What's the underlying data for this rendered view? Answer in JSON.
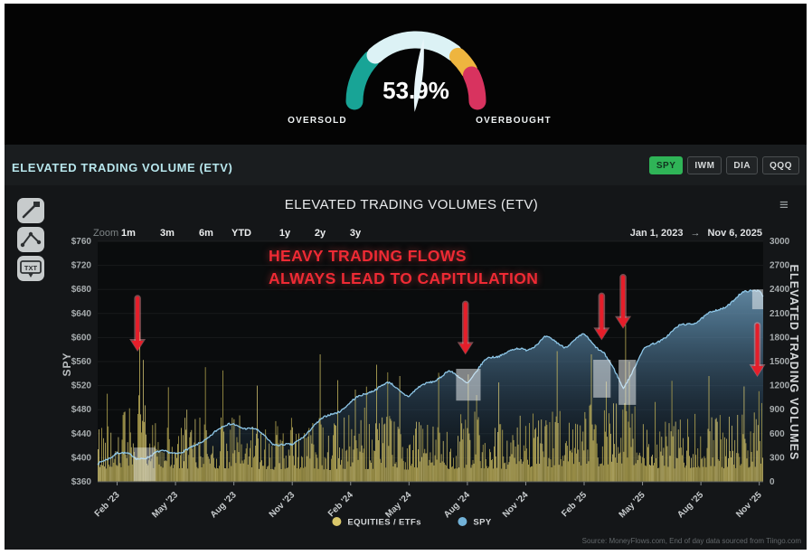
{
  "gauge": {
    "value_label": "53.9%",
    "value_pct": 53.9,
    "left_label": "OVERSOLD",
    "right_label": "OVERBOUGHT",
    "needle_color": "#e9f6fa",
    "segments": [
      {
        "name": "oversold",
        "color": "#18a496",
        "start": 0,
        "end": 24
      },
      {
        "name": "neutral",
        "color": "#dcf2f5",
        "start": 27,
        "end": 71
      },
      {
        "name": "warning",
        "color": "#eeb53f",
        "start": 74,
        "end": 83
      },
      {
        "name": "overbought",
        "color": "#d8335f",
        "start": 86,
        "end": 100
      }
    ]
  },
  "section": {
    "title": "ELEVATED TRADING VOLUME (ETV)",
    "ticker_buttons": [
      {
        "label": "SPY",
        "active": true
      },
      {
        "label": "IWM",
        "active": false
      },
      {
        "label": "DIA",
        "active": false
      },
      {
        "label": "QQQ",
        "active": false
      }
    ],
    "active_color": "#2fb457"
  },
  "chart": {
    "title": "ELEVATED TRADING VOLUMES (ETV)",
    "menu_icon": "≡",
    "zoom_label": "Zoom",
    "zoom_options": [
      "1m",
      "3m",
      "6m",
      "YTD",
      "1y",
      "2y",
      "3y"
    ],
    "date_range": {
      "from": "Jan 1, 2023",
      "separator": "→",
      "to": "Nov 6, 2025"
    },
    "annotation": {
      "line1": "HEAVY TRADING FLOWS",
      "line2": "ALWAYS LEAD TO CAPITULATION"
    },
    "tools": [
      {
        "name": "trendline-tool",
        "glyph": "trendline"
      },
      {
        "name": "pattern-tool",
        "glyph": "abc-pattern"
      },
      {
        "name": "text-tool",
        "glyph": "TXT"
      }
    ],
    "legend": [
      {
        "label": "EQUITIES / ETFs",
        "color": "#d9c76a"
      },
      {
        "label": "SPY",
        "color": "#72b2d8"
      }
    ],
    "source": "Source: MoneyFlows.com, End of day data sourced from Tiingo.com"
  },
  "chart_data": {
    "type": "mixed",
    "subtype": "daily bars (right axis) + area line (left axis)",
    "x_range": [
      "Jan 1, 2023",
      "Nov 6, 2025"
    ],
    "x_span_months": 34.2,
    "left_axis": {
      "title": "SPY",
      "min": 360,
      "max": 760,
      "tick_step": 40,
      "tick_labels": [
        "$360",
        "$400",
        "$440",
        "$480",
        "$520",
        "$560",
        "$600",
        "$640",
        "$680",
        "$720",
        "$760"
      ]
    },
    "right_axis": {
      "title": "ELEVATED TRADING VOLUMES",
      "min": 0,
      "max": 3000,
      "tick_step": 300,
      "tick_labels": [
        "0",
        "300",
        "600",
        "900",
        "1200",
        "1500",
        "1800",
        "2100",
        "2400",
        "2700",
        "3000"
      ]
    },
    "x_ticks": [
      {
        "m": 1,
        "label": "Feb '23"
      },
      {
        "m": 4,
        "label": "May '23"
      },
      {
        "m": 7,
        "label": "Aug '23"
      },
      {
        "m": 10,
        "label": "Nov '23"
      },
      {
        "m": 13,
        "label": "Feb '24"
      },
      {
        "m": 16,
        "label": "May '24"
      },
      {
        "m": 19,
        "label": "Aug '24"
      },
      {
        "m": 22,
        "label": "Nov '24"
      },
      {
        "m": 25,
        "label": "Feb '25"
      },
      {
        "m": 28,
        "label": "May '25"
      },
      {
        "m": 31,
        "label": "Aug '25"
      },
      {
        "m": 34,
        "label": "Nov '25"
      }
    ],
    "series": [
      {
        "name": "SPY",
        "type": "area-line",
        "axis": "left",
        "color": "#8ec7e8",
        "monthly_values_from_2023_01": [
          384,
          406,
          395,
          409,
          414,
          420,
          445,
          452,
          443,
          424,
          421,
          456,
          475,
          489,
          508,
          519,
          504,
          529,
          547,
          528,
          560,
          572,
          577,
          601,
          591,
          607,
          576,
          512,
          572,
          598,
          622,
          636,
          650,
          668,
          678
        ]
      },
      {
        "name": "EQUITIES / ETFs",
        "type": "bar",
        "axis": "right",
        "color": "#cdbd62",
        "monthly_typical_level": [
          540,
          560,
          720,
          540,
          500,
          560,
          540,
          560,
          520,
          500,
          470,
          560,
          480,
          500,
          530,
          540,
          500,
          560,
          520,
          590,
          540,
          520,
          560,
          610,
          570,
          650,
          630,
          720,
          570,
          540,
          560,
          590,
          560,
          540,
          640
        ],
        "notable_spikes_month_value": [
          [
            2.15,
            1870
          ],
          [
            2.35,
            1520
          ],
          [
            3.6,
            1180
          ],
          [
            5.5,
            1430
          ],
          [
            6.4,
            1390
          ],
          [
            8.2,
            1200
          ],
          [
            11.4,
            1590
          ],
          [
            13.2,
            1150
          ],
          [
            14.3,
            1460
          ],
          [
            15.5,
            1320
          ],
          [
            17.5,
            1360
          ],
          [
            19.05,
            1340
          ],
          [
            20.6,
            1240
          ],
          [
            23.6,
            1630
          ],
          [
            25.35,
            1590
          ],
          [
            26.1,
            1250
          ],
          [
            27.1,
            1960
          ],
          [
            27.3,
            1500
          ],
          [
            29.5,
            1260
          ],
          [
            31.4,
            1320
          ],
          [
            33.2,
            1190
          ],
          [
            33.95,
            1130
          ]
        ]
      }
    ],
    "red_arrows_month_tip": [
      {
        "m": 2.05,
        "tip": 578,
        "len": 58
      },
      {
        "m": 18.9,
        "tip": 573,
        "len": 55
      },
      {
        "m": 25.9,
        "tip": 597,
        "len": 48
      },
      {
        "m": 27.0,
        "tip": 616,
        "len": 56
      },
      {
        "m": 33.9,
        "tip": 536,
        "len": 56
      }
    ],
    "highlight_boxes_month_value": [
      {
        "m1": 1.86,
        "m2": 2.97,
        "v1": 361,
        "v2": 417
      },
      {
        "m1": 18.42,
        "m2": 19.68,
        "v1": 495,
        "v2": 548
      },
      {
        "m1": 25.47,
        "m2": 26.36,
        "v1": 500,
        "v2": 563
      },
      {
        "m1": 26.77,
        "m2": 27.66,
        "v1": 488,
        "v2": 563
      },
      {
        "m1": 33.64,
        "m2": 34.2,
        "v1": 647,
        "v2": 680
      }
    ],
    "grid": true,
    "legend_position": "bottom-center"
  }
}
